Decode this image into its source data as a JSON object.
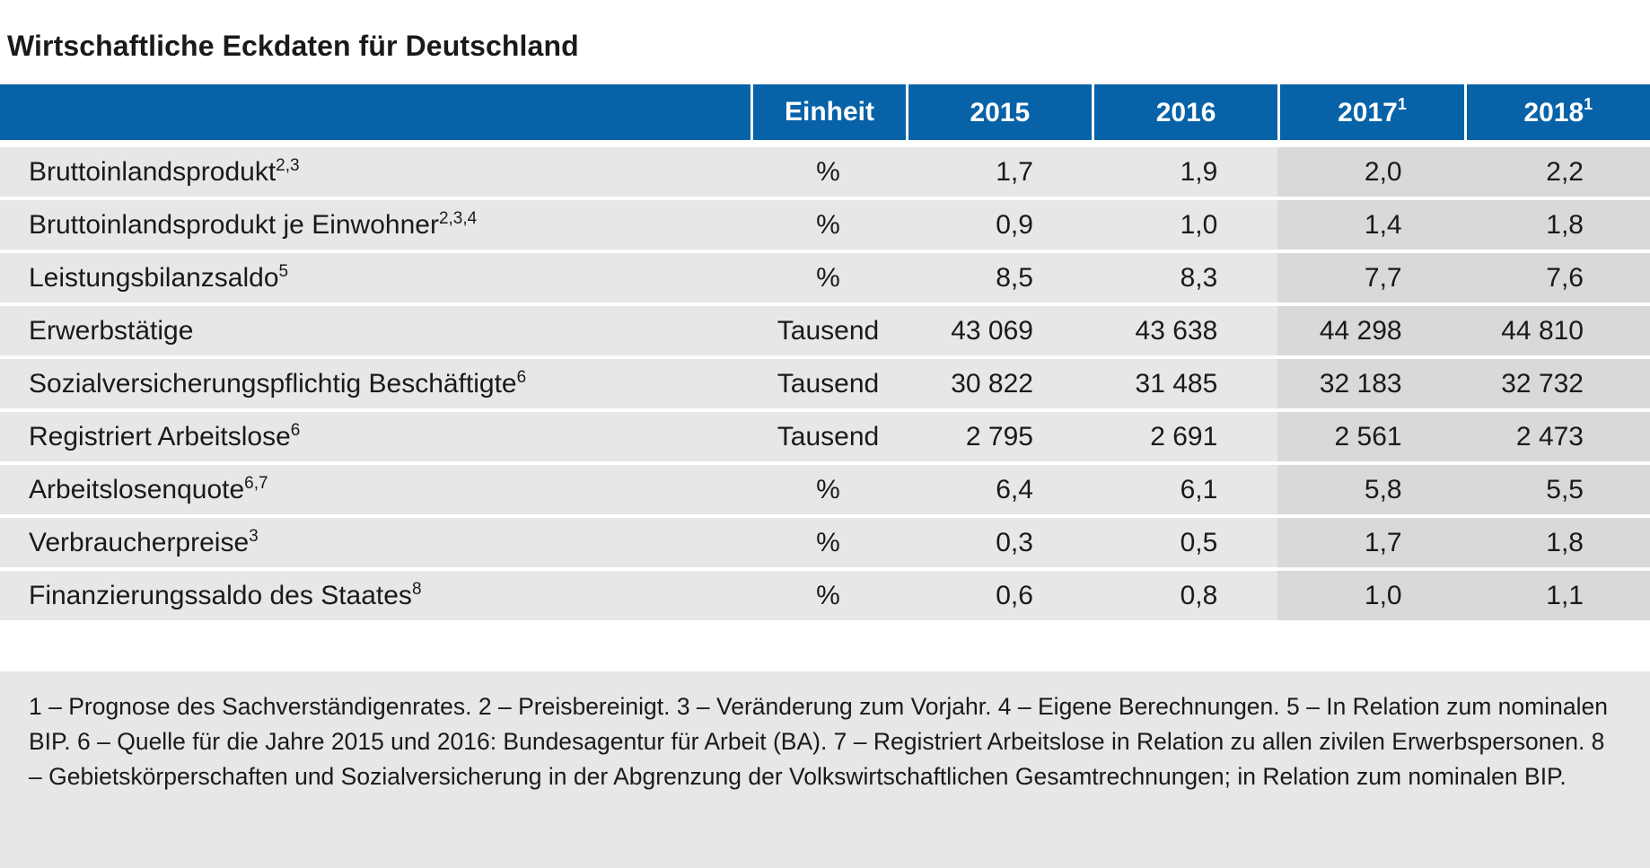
{
  "title": "Wirtschaftliche Eckdaten für Deutschland",
  "header": {
    "label": "",
    "unit": "Einheit",
    "years": [
      {
        "year": "2015",
        "note": ""
      },
      {
        "year": "2016",
        "note": ""
      },
      {
        "year": "2017",
        "note": "1"
      },
      {
        "year": "2018",
        "note": "1"
      }
    ]
  },
  "rows": [
    {
      "label": "Bruttoinlandsprodukt",
      "note": "2,3",
      "unit": "%",
      "values": [
        "1,7",
        "1,9",
        "2,0",
        "2,2"
      ]
    },
    {
      "label": "Bruttoinlandsprodukt je Einwohner",
      "note": "2,3,4",
      "unit": "%",
      "values": [
        "0,9",
        "1,0",
        "1,4",
        "1,8"
      ]
    },
    {
      "label": "Leistungsbilanzsaldo",
      "note": "5",
      "unit": "%",
      "values": [
        "8,5",
        "8,3",
        "7,7",
        "7,6"
      ]
    },
    {
      "label": "Erwerbstätige",
      "note": "",
      "unit": "Tausend",
      "values": [
        "43 069",
        "43 638",
        "44 298",
        "44 810"
      ]
    },
    {
      "label": "Sozialversicherungspflichtig Beschäftigte",
      "note": "6",
      "unit": "Tausend",
      "values": [
        "30 822",
        "31 485",
        "32 183",
        "32 732"
      ]
    },
    {
      "label": "Registriert Arbeitslose",
      "note": "6",
      "unit": "Tausend",
      "values": [
        "2 795",
        "2 691",
        "2 561",
        "2 473"
      ]
    },
    {
      "label": "Arbeitslosenquote",
      "note": "6,7",
      "unit": "%",
      "values": [
        "6,4",
        "6,1",
        "5,8",
        "5,5"
      ]
    },
    {
      "label": "Verbraucherpreise",
      "note": "3",
      "unit": "%",
      "values": [
        "0,3",
        "0,5",
        "1,7",
        "1,8"
      ]
    },
    {
      "label": "Finanzierungssaldo des Staates",
      "note": "8",
      "unit": "%",
      "values": [
        "0,6",
        "0,8",
        "1,0",
        "1,1"
      ]
    }
  ],
  "footnotes": "1 – Prognose des Sachverständigenrates.  2 – Preisbereinigt.  3 – Veränderung zum Vorjahr.  4 – Eigene Berechnungen.  5 – In Relation zum nominalen BIP.  6 – Quelle für die Jahre 2015 und 2016: Bundesagentur für Arbeit (BA).  7 – Registriert Arbeitslose in Relation zu allen zivilen Erwerbspersonen.  8 – Gebietskörperschaften und Sozialversicherung in der Abgrenzung der Volkswirtschaftlichen Gesamtrechnungen; in Relation zum nominalen BIP.",
  "colors": {
    "header_bg": "#0762a8",
    "row_bg": "#e7e7e7",
    "forecast_bg": "#d9d9d9"
  }
}
